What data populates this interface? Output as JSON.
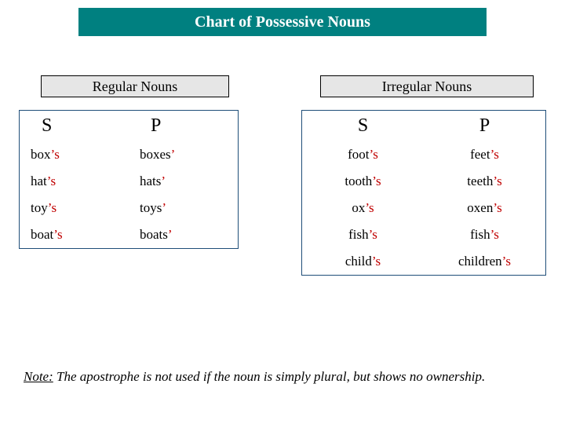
{
  "colors": {
    "title_bg": "#008080",
    "title_fg": "#ffffff",
    "subhead_bg": "#e6e6e6",
    "subhead_border": "#000000",
    "table_border": "#1f4e79",
    "highlight": "#c00000",
    "text": "#000000",
    "background": "#ffffff"
  },
  "typography": {
    "base_family": "Times New Roman",
    "note_family": "Georgia",
    "title_fontsize": 20,
    "subhead_fontsize": 18,
    "header_cell_fontsize": 24,
    "cell_fontsize": 17,
    "note_fontsize": 17
  },
  "title": "Chart of Possessive Nouns",
  "regular": {
    "heading": "Regular Nouns",
    "columns": {
      "singular": "S",
      "plural": "P"
    },
    "rows": [
      {
        "s_base": "box",
        "s_suffix": "’s",
        "p_base": "boxes",
        "p_suffix": "’"
      },
      {
        "s_base": "hat",
        "s_suffix": "’s",
        "p_base": "hats",
        "p_suffix": "’"
      },
      {
        "s_base": "toy",
        "s_suffix": "’s",
        "p_base": "toys",
        "p_suffix": "’"
      },
      {
        "s_base": "boat",
        "s_suffix": "’s",
        "p_base": "boats",
        "p_suffix": "’"
      }
    ]
  },
  "irregular": {
    "heading": "Irregular Nouns",
    "columns": {
      "singular": "S",
      "plural": "P"
    },
    "rows": [
      {
        "s_base": "foot",
        "s_suffix": "’s",
        "p_base": "feet",
        "p_suffix": "’s"
      },
      {
        "s_base": "tooth",
        "s_suffix": "’s",
        "p_base": "teeth",
        "p_suffix": "’s"
      },
      {
        "s_base": "ox",
        "s_suffix": "’s",
        "p_base": "oxen",
        "p_suffix": "’s"
      },
      {
        "s_base": "fish",
        "s_suffix": "’s",
        "p_base": "fish",
        "p_suffix": "’s"
      },
      {
        "s_base": "child",
        "s_suffix": "’s",
        "p_base": "children",
        "p_suffix": "’s"
      }
    ]
  },
  "note": {
    "label": "Note:",
    "text": " The apostrophe is not used if the noun is simply plural, but shows no ownership."
  }
}
